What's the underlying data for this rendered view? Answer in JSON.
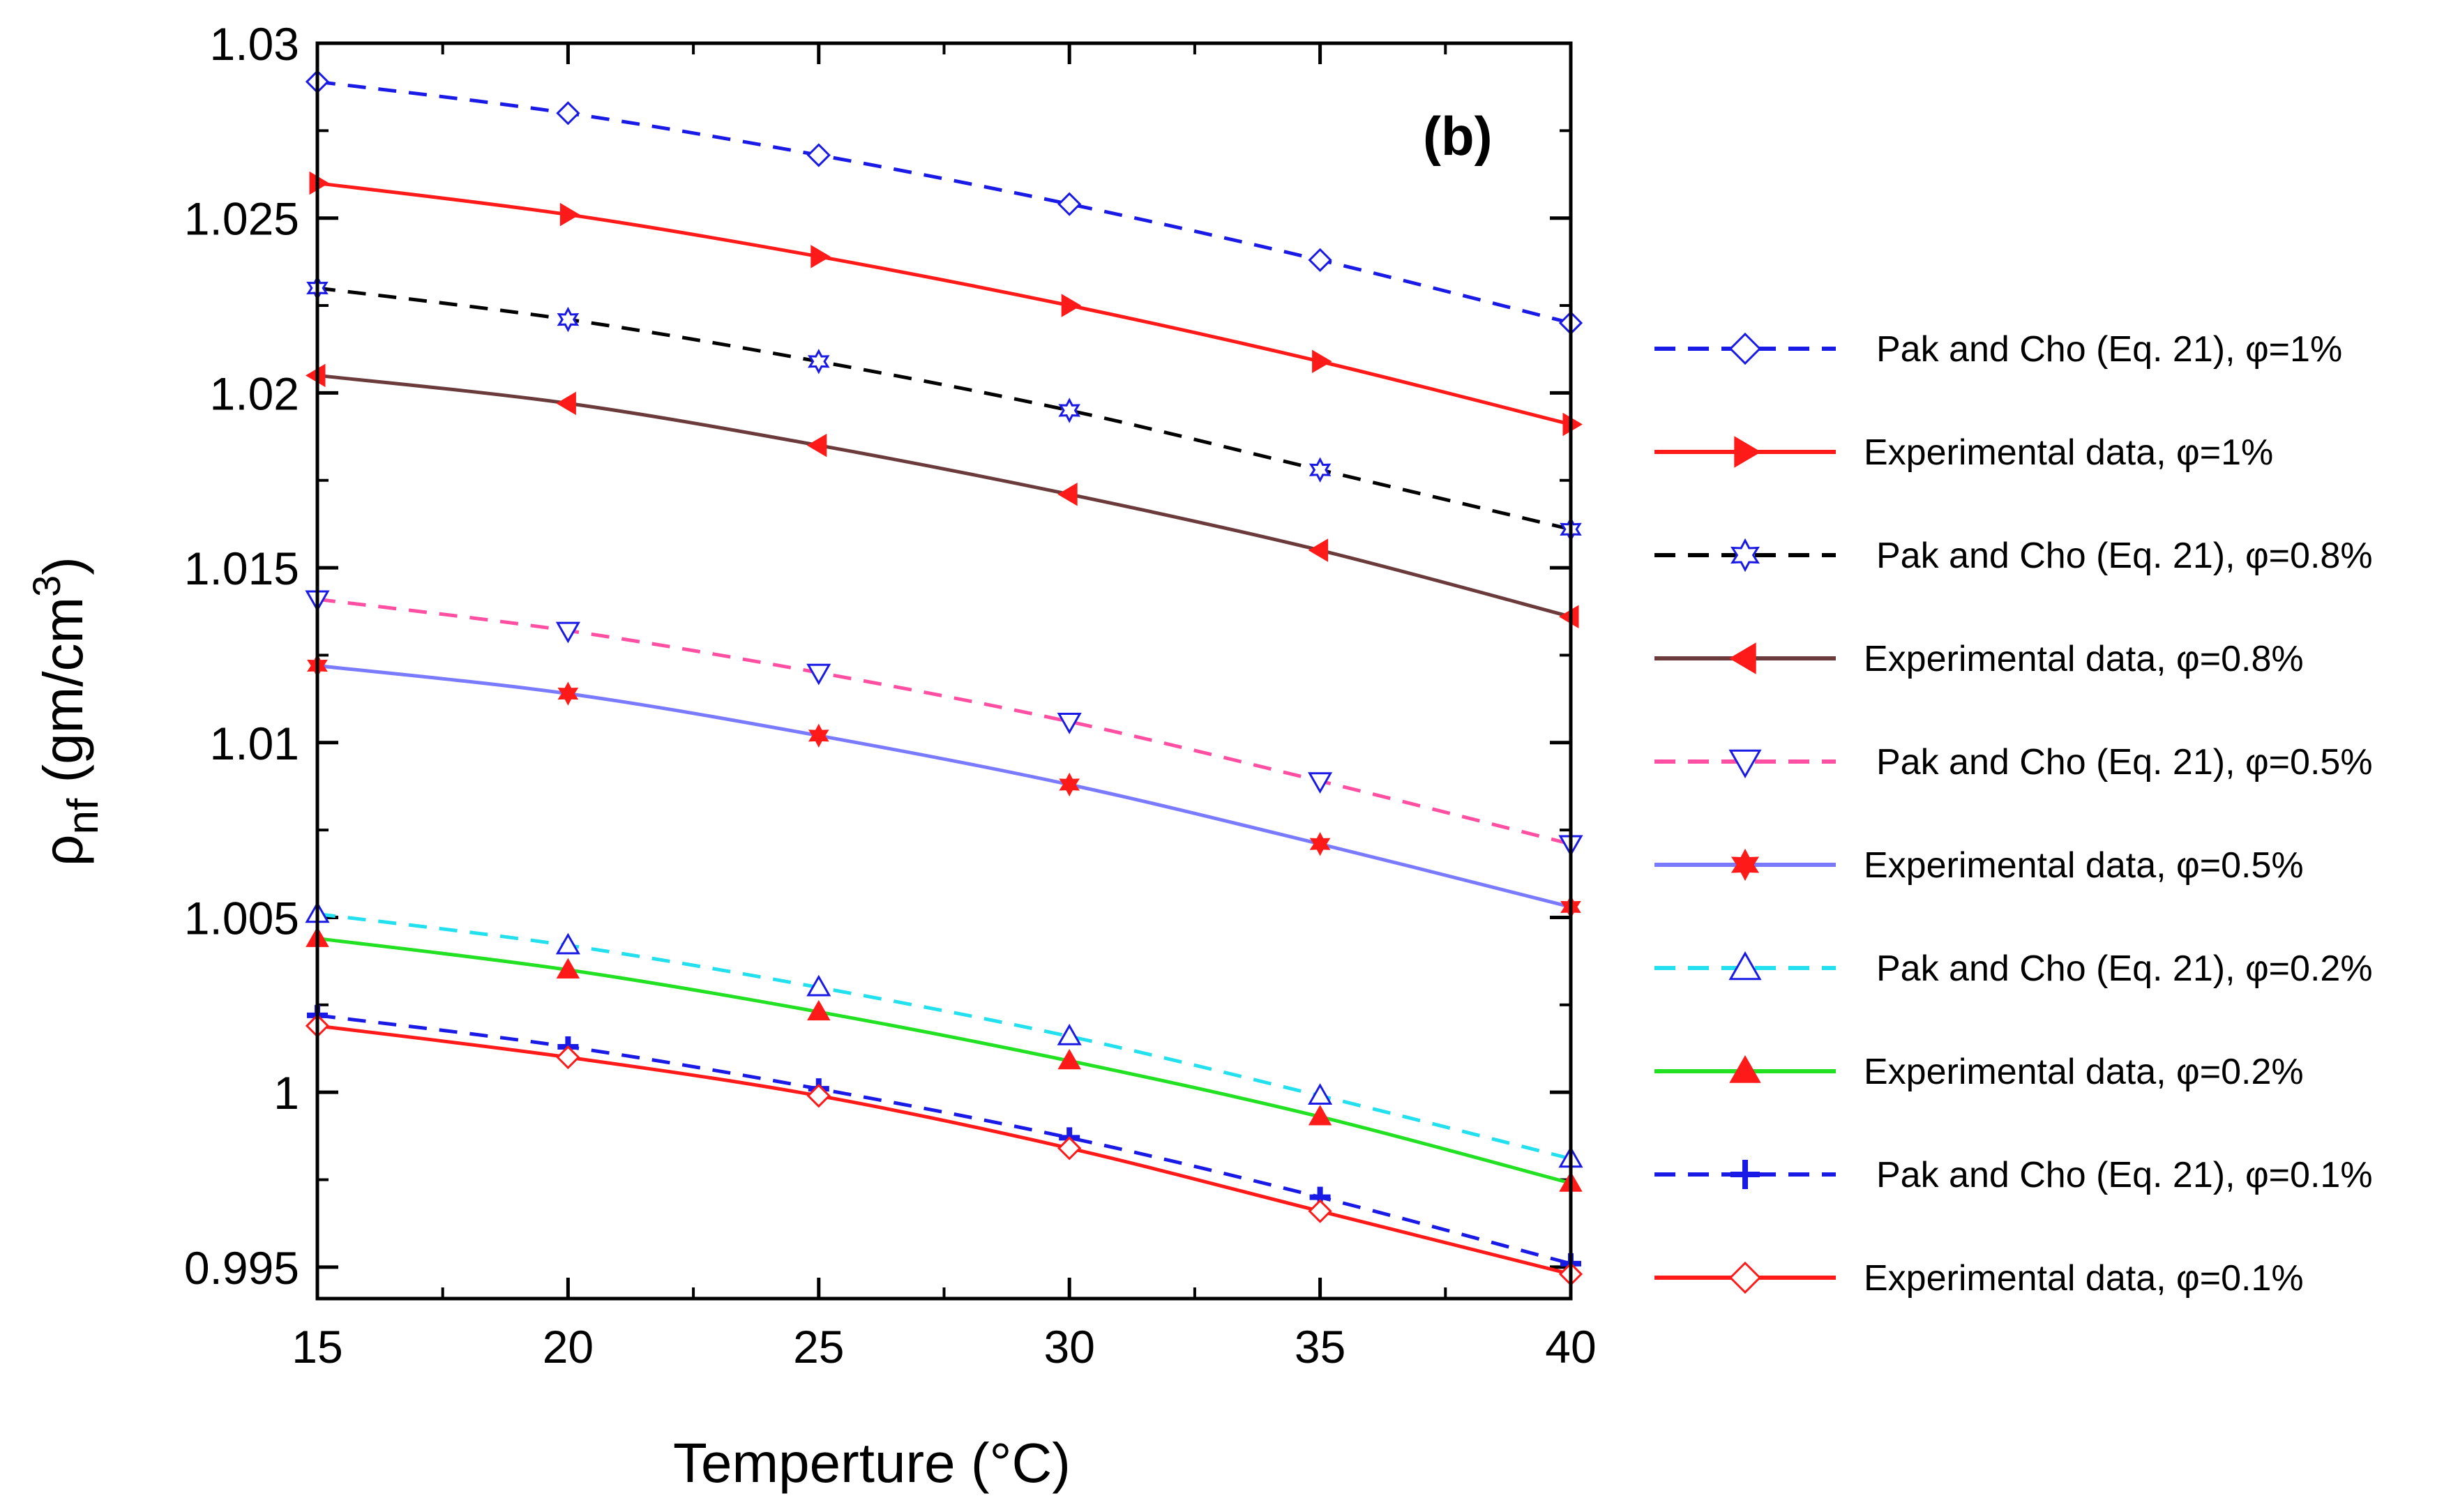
{
  "chart_data": {
    "type": "line",
    "panel_label": "(b)",
    "xlabel": "Temperture (°C)",
    "ylabel": {
      "main": "ρ",
      "subscript": "nf",
      "unit_prefix": " (gm/cm",
      "unit_sup": "3",
      "unit_suffix": ")"
    },
    "xlim": [
      15,
      40
    ],
    "ylim": [
      0.9941,
      1.03
    ],
    "x_ticks": [
      15,
      20,
      25,
      30,
      35,
      40
    ],
    "x_tick_labels": [
      "15",
      "20",
      "25",
      "30",
      "35",
      "40"
    ],
    "y_ticks": [
      0.995,
      1.0,
      1.005,
      1.01,
      1.015,
      1.02,
      1.025,
      1.03
    ],
    "y_tick_labels": [
      "0.995",
      "1",
      "1.005",
      "1.01",
      "1.015",
      "1.02",
      "1.025",
      "1.03"
    ],
    "x": [
      15,
      20,
      25,
      30,
      35,
      40
    ],
    "legend_position": "right",
    "series": [
      {
        "name": "Pak and Cho (Eq. 21), φ=1%",
        "color": "#1a1ae6",
        "dash": "dashed",
        "marker": "diamond-open",
        "marker_color": "#1a1ae6",
        "values": [
          1.0289,
          1.028,
          1.0268,
          1.0254,
          1.0238,
          1.022
        ]
      },
      {
        "name": "Experimental data, φ=1%",
        "color": "#ff1a1a",
        "dash": "solid",
        "marker": "triangle-right-filled",
        "marker_color": "#ff1a1a",
        "values": [
          1.026,
          1.0251,
          1.0239,
          1.0225,
          1.0209,
          1.0191
        ]
      },
      {
        "name": "Pak and Cho (Eq. 21), φ=0.8%",
        "color": "#000000",
        "dash": "dashed",
        "marker": "star-open",
        "marker_color": "#1a1ae6",
        "values": [
          1.023,
          1.0221,
          1.0209,
          1.0195,
          1.0178,
          1.0161
        ]
      },
      {
        "name": "Experimental data, φ=0.8%",
        "color": "#6b3a3a",
        "dash": "solid",
        "marker": "triangle-left-filled",
        "marker_color": "#ff1a1a",
        "values": [
          1.0205,
          1.0197,
          1.0185,
          1.0171,
          1.0155,
          1.0136
        ]
      },
      {
        "name": "Pak and Cho (Eq. 21), φ=0.5%",
        "color": "#ff4fa3",
        "dash": "dashed",
        "marker": "triangle-down-open",
        "marker_color": "#1a1ae6",
        "values": [
          1.0141,
          1.0132,
          1.012,
          1.0106,
          1.0089,
          1.0071
        ]
      },
      {
        "name": "Experimental data, φ=0.5%",
        "color": "#7a7aff",
        "dash": "solid",
        "marker": "star-filled",
        "marker_color": "#ff1a1a",
        "values": [
          1.0122,
          1.0114,
          1.0102,
          1.0088,
          1.0071,
          1.0053
        ]
      },
      {
        "name": "Pak and Cho (Eq. 21), φ=0.2%",
        "color": "#22e0ee",
        "dash": "dashed",
        "marker": "triangle-up-open",
        "marker_color": "#1a1ae6",
        "values": [
          1.0051,
          1.0042,
          1.003,
          1.0016,
          0.9999,
          0.9981
        ]
      },
      {
        "name": "Experimental data, φ=0.2%",
        "color": "#22e022",
        "dash": "solid",
        "marker": "triangle-up-filled",
        "marker_color": "#ff1a1a",
        "values": [
          1.0044,
          1.0035,
          1.0023,
          1.0009,
          0.9993,
          0.9974
        ]
      },
      {
        "name": "Pak and Cho (Eq. 21), φ=0.1%",
        "color": "#1a1ae6",
        "dash": "dashed",
        "marker": "plus",
        "marker_color": "#1a1ae6",
        "values": [
          1.0022,
          1.0013,
          1.0001,
          0.9987,
          0.997,
          0.9951
        ]
      },
      {
        "name": "Experimental data, φ=0.1%",
        "color": "#ff1a1a",
        "dash": "solid",
        "marker": "diamond-open",
        "marker_color": "#ff1a1a",
        "values": [
          1.0019,
          1.001,
          0.9999,
          0.9984,
          0.9966,
          0.9948
        ]
      }
    ]
  }
}
